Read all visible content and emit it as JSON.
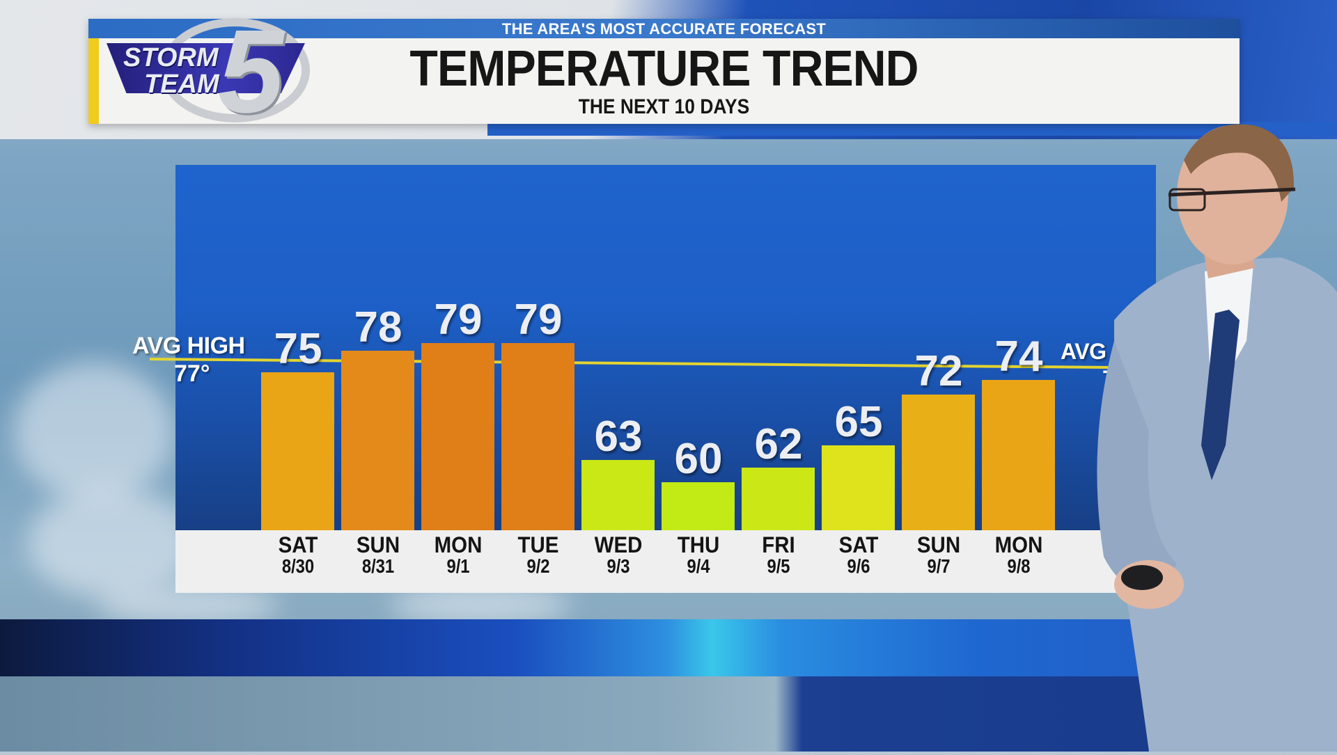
{
  "header": {
    "tagline": "THE AREA'S MOST ACCURATE FORECAST",
    "title": "TEMPERATURE TREND",
    "subtitle": "THE NEXT 10 DAYS"
  },
  "logo": {
    "line1": "STORM",
    "line2": "TEAM",
    "number": "5"
  },
  "avg_high_left": {
    "label": "AVG HIGH",
    "value": "77°"
  },
  "avg_high_right": {
    "label": "AVG HIG",
    "value": "75°"
  },
  "colors": {
    "panel_blue": "#1f63cc",
    "avg_line": "#e3d430",
    "bar_warm_orange": "#e07e17",
    "bar_amber": "#e9a516",
    "bar_yellow": "#dee31b",
    "bar_lime": "#c5ea14",
    "header_yellow": "#f1cc1d"
  },
  "days": [
    {
      "name": "SAT",
      "date": "8/30",
      "temp": "75"
    },
    {
      "name": "SUN",
      "date": "8/31",
      "temp": "78"
    },
    {
      "name": "MON",
      "date": "9/1",
      "temp": "79"
    },
    {
      "name": "TUE",
      "date": "9/2",
      "temp": "79"
    },
    {
      "name": "WED",
      "date": "9/3",
      "temp": "63"
    },
    {
      "name": "THU",
      "date": "9/4",
      "temp": "60"
    },
    {
      "name": "FRI",
      "date": "9/5",
      "temp": "62"
    },
    {
      "name": "SAT",
      "date": "9/6",
      "temp": "65"
    },
    {
      "name": "SUN",
      "date": "9/7",
      "temp": "72"
    },
    {
      "name": "MON",
      "date": "9/8",
      "temp": "74"
    }
  ],
  "chart_data": {
    "type": "bar",
    "title": "TEMPERATURE TREND",
    "subtitle": "THE NEXT 10 DAYS",
    "categories": [
      "SAT 8/30",
      "SUN 8/31",
      "MON 9/1",
      "TUE 9/2",
      "WED 9/3",
      "THU 9/4",
      "FRI 9/5",
      "SAT 9/6",
      "SUN 9/7",
      "MON 9/8"
    ],
    "values": [
      75,
      78,
      79,
      79,
      63,
      60,
      62,
      65,
      72,
      74
    ],
    "bar_colors": [
      "#e9a516",
      "#e38a1a",
      "#e07e17",
      "#e07e17",
      "#c9e816",
      "#c2ea14",
      "#cbe816",
      "#dee31b",
      "#e8b016",
      "#e9a516"
    ],
    "reference_line": {
      "label": "AVG HIGH",
      "start_value": 77,
      "end_value": 75,
      "color": "#e3d430"
    },
    "xlabel": "",
    "ylabel": "",
    "grid": false,
    "legend": "none",
    "data_labels": true
  }
}
